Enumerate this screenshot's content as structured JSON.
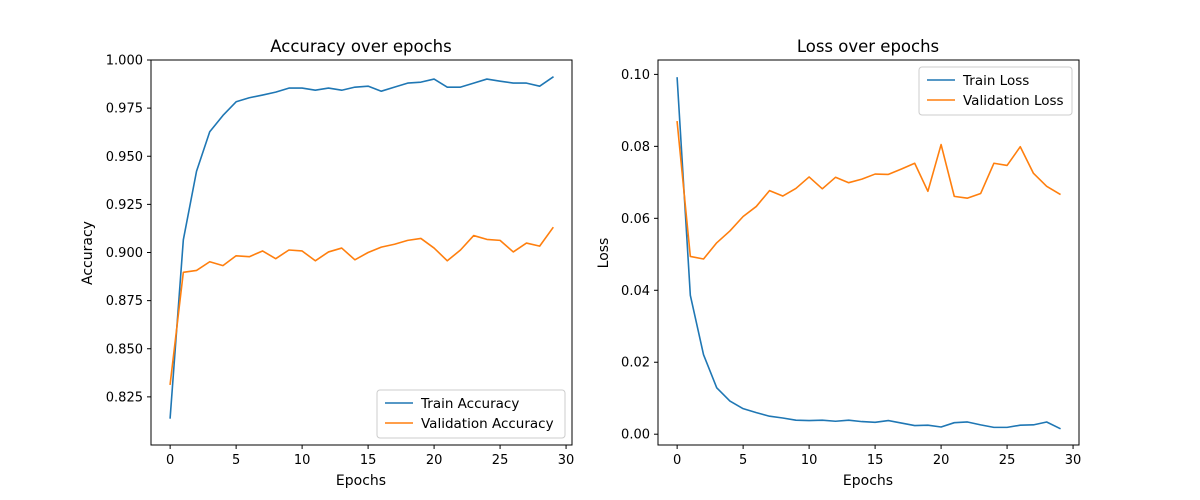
{
  "chart_data": [
    {
      "type": "line",
      "title": "Accuracy over epochs",
      "xlabel": "Epochs",
      "ylabel": "Accuracy",
      "xlim": [
        -1.45,
        30.45
      ],
      "ylim": [
        0.8,
        1.0
      ],
      "xticks": [
        0,
        5,
        10,
        15,
        20,
        25,
        30
      ],
      "yticks": [
        0.825,
        0.85,
        0.875,
        0.9,
        0.925,
        0.95,
        0.975,
        1.0
      ],
      "ytick_labels": [
        "0.825",
        "0.850",
        "0.875",
        "0.900",
        "0.925",
        "0.950",
        "0.975",
        "1.000"
      ],
      "grid": false,
      "legend_position": "lower-right",
      "x": [
        0,
        1,
        2,
        3,
        4,
        5,
        6,
        7,
        8,
        9,
        10,
        11,
        12,
        13,
        14,
        15,
        16,
        17,
        18,
        19,
        20,
        21,
        22,
        23,
        24,
        25,
        26,
        27,
        28,
        29
      ],
      "series": [
        {
          "name": "Train Accuracy",
          "color": "#1f77b4",
          "values": [
            0.8141,
            0.9066,
            0.9422,
            0.9627,
            0.9712,
            0.9783,
            0.9804,
            0.9818,
            0.9833,
            0.9854,
            0.9854,
            0.9843,
            0.9854,
            0.9843,
            0.9859,
            0.9864,
            0.9838,
            0.9859,
            0.988,
            0.9885,
            0.9901,
            0.9859,
            0.9859,
            0.988,
            0.9901,
            0.989,
            0.988,
            0.988,
            0.9864,
            0.9911
          ]
        },
        {
          "name": "Validation Accuracy",
          "color": "#ff7f0e",
          "values": [
            0.8316,
            0.8897,
            0.8907,
            0.8952,
            0.8932,
            0.8983,
            0.8978,
            0.9008,
            0.8968,
            0.9013,
            0.9008,
            0.8957,
            0.9003,
            0.9023,
            0.8962,
            0.9,
            0.9028,
            0.9043,
            0.9063,
            0.9073,
            0.9023,
            0.8957,
            0.9013,
            0.9088,
            0.9068,
            0.9063,
            0.9003,
            0.9049,
            0.9033,
            0.9128
          ]
        }
      ]
    },
    {
      "type": "line",
      "title": "Loss over epochs",
      "xlabel": "Epochs",
      "ylabel": "Loss",
      "xlim": [
        -1.45,
        30.45
      ],
      "ylim": [
        -0.003,
        0.104
      ],
      "xticks": [
        0,
        5,
        10,
        15,
        20,
        25,
        30
      ],
      "yticks": [
        0.0,
        0.02,
        0.04,
        0.06,
        0.08,
        0.1
      ],
      "ytick_labels": [
        "0.00",
        "0.02",
        "0.04",
        "0.06",
        "0.08",
        "0.10"
      ],
      "grid": false,
      "legend_position": "upper-right",
      "x": [
        0,
        1,
        2,
        3,
        4,
        5,
        6,
        7,
        8,
        9,
        10,
        11,
        12,
        13,
        14,
        15,
        16,
        17,
        18,
        19,
        20,
        21,
        22,
        23,
        24,
        25,
        26,
        27,
        28,
        29
      ],
      "series": [
        {
          "name": "Train Loss",
          "color": "#1f77b4",
          "values": [
            0.099,
            0.0386,
            0.0221,
            0.0129,
            0.0092,
            0.0071,
            0.006,
            0.005,
            0.0045,
            0.0039,
            0.0038,
            0.0039,
            0.0036,
            0.0039,
            0.0035,
            0.0033,
            0.0038,
            0.0031,
            0.0024,
            0.0025,
            0.002,
            0.0032,
            0.0034,
            0.0026,
            0.0019,
            0.0019,
            0.0025,
            0.0026,
            0.0034,
            0.0016
          ]
        },
        {
          "name": "Validation Loss",
          "color": "#ff7f0e",
          "values": [
            0.0868,
            0.0494,
            0.0487,
            0.0532,
            0.0565,
            0.0605,
            0.0633,
            0.0677,
            0.0662,
            0.0683,
            0.0715,
            0.0682,
            0.0714,
            0.0699,
            0.0709,
            0.0723,
            0.0722,
            0.0737,
            0.0753,
            0.0675,
            0.0805,
            0.0661,
            0.0656,
            0.0669,
            0.0753,
            0.0747,
            0.0799,
            0.0725,
            0.0689,
            0.0667
          ]
        }
      ]
    }
  ]
}
